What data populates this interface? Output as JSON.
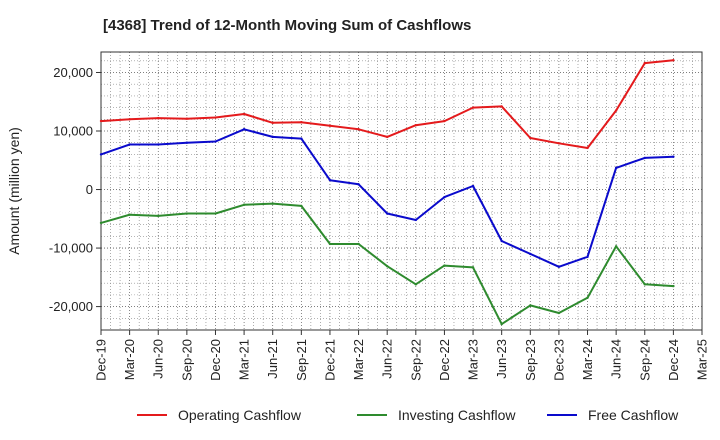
{
  "chart_data": {
    "type": "line",
    "title": "[4368]  Trend of 12-Month Moving Sum of Cashflows",
    "xlabel": "",
    "ylabel": "Amount (million yen)",
    "x_ticks": [
      "Dec-19",
      "Mar-20",
      "Jun-20",
      "Sep-20",
      "Dec-20",
      "Mar-21",
      "Jun-21",
      "Sep-21",
      "Dec-21",
      "Mar-22",
      "Jun-22",
      "Sep-22",
      "Dec-22",
      "Mar-23",
      "Jun-23",
      "Sep-23",
      "Dec-23",
      "Mar-24",
      "Jun-24",
      "Sep-24",
      "Dec-24",
      "Mar-25"
    ],
    "y_ticks": [
      -20000,
      -10000,
      0,
      10000,
      20000
    ],
    "y_tick_labels": [
      "-20,000",
      "-10,000",
      "0",
      "10,000",
      "20,000"
    ],
    "ylim": [
      -24000,
      23500
    ],
    "grid": true,
    "legend_position": "bottom",
    "categories": [
      "Dec-19",
      "Mar-20",
      "Jun-20",
      "Sep-20",
      "Dec-20",
      "Mar-21",
      "Jun-21",
      "Sep-21",
      "Dec-21",
      "Mar-22",
      "Jun-22",
      "Sep-22",
      "Dec-22",
      "Mar-23",
      "Jun-23",
      "Sep-23",
      "Dec-23",
      "Mar-24",
      "Jun-24",
      "Sep-24",
      "Dec-24"
    ],
    "series": [
      {
        "name": "Operating Cashflow",
        "color": "#e41a1c",
        "values": [
          11700,
          12000,
          12200,
          12100,
          12300,
          12900,
          11400,
          11500,
          10900,
          10300,
          9000,
          11000,
          11700,
          14000,
          14200,
          8800,
          7900,
          7100,
          13500,
          21600,
          22100
        ]
      },
      {
        "name": "Investing Cashflow",
        "color": "#2e8b2e",
        "values": [
          -5700,
          -4300,
          -4500,
          -4100,
          -4100,
          -2600,
          -2400,
          -2800,
          -9300,
          -9300,
          -13100,
          -16200,
          -13000,
          -13300,
          -23000,
          -19800,
          -21100,
          -18500,
          -9700,
          -16200,
          -16500
        ]
      },
      {
        "name": "Free Cashflow",
        "color": "#0a0acc",
        "values": [
          6000,
          7700,
          7700,
          8000,
          8200,
          10300,
          9000,
          8700,
          1600,
          900,
          -4100,
          -5200,
          -1300,
          600,
          -8800,
          -11000,
          -13200,
          -11500,
          3700,
          5400,
          5600
        ]
      }
    ]
  }
}
